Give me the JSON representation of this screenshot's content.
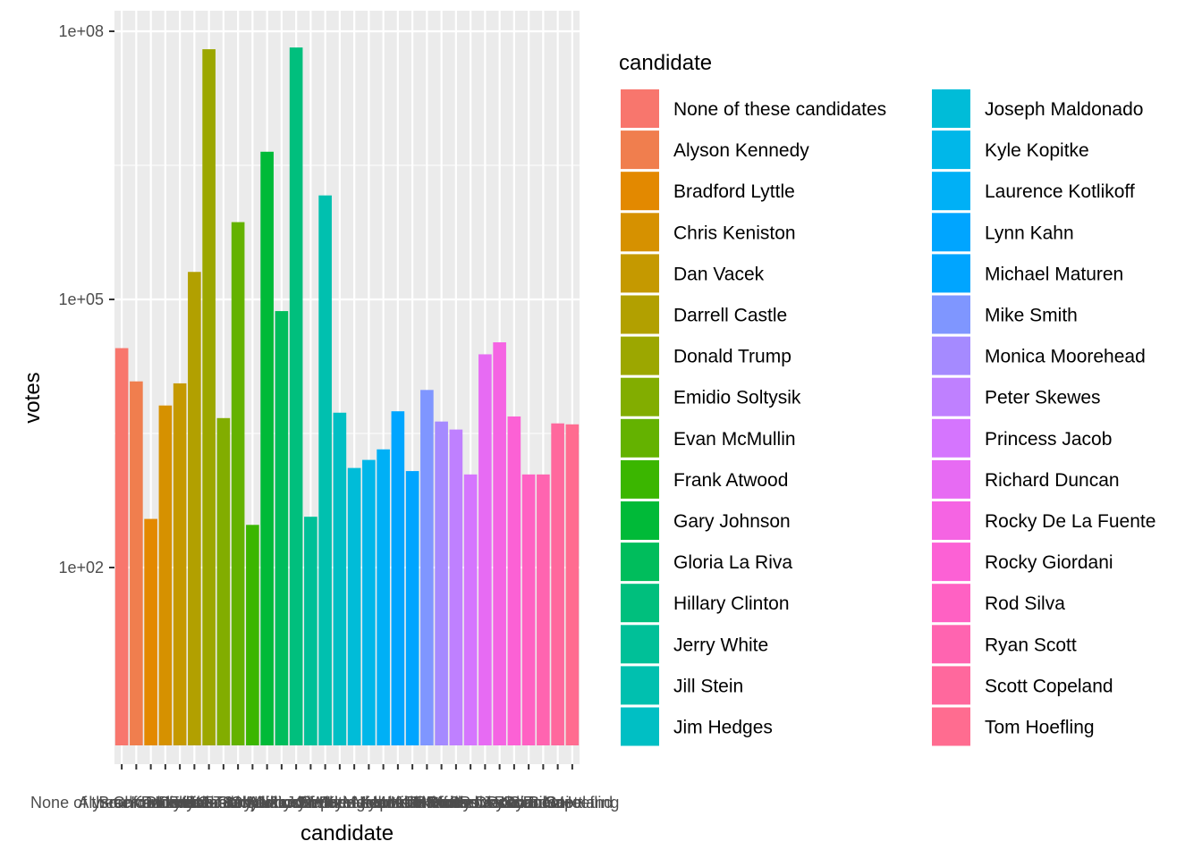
{
  "chart_data": {
    "type": "bar",
    "title": "",
    "xlabel": "candidate",
    "ylabel": "votes",
    "y_scale": "log10",
    "y_ticks": [
      100,
      100000,
      100000000
    ],
    "y_tick_labels": [
      "1e+02",
      "1e+05",
      "1e+08"
    ],
    "grid": true,
    "legend_title": "candidate",
    "legend_position": "right",
    "categories": [
      " None of these candidates",
      "Alyson Kennedy",
      "Bradford Lyttle",
      "Chris Keniston",
      "Dan Vacek",
      "Darrell Castle",
      "Donald Trump",
      "Emidio Soltysik",
      "Evan McMullin",
      "Frank Atwood",
      "Gary Johnson",
      "Gloria La Riva",
      "Hillary Clinton",
      "Jerry White",
      "Jill Stein",
      "Jim Hedges",
      "Joseph Maldonado",
      "Kyle Kopitke",
      "Laurence Kotlikoff",
      "Lynn Kahn",
      "Michael Maturen",
      "Mike Smith",
      "Monica Moorehead",
      "Peter Skewes",
      "Princess Jacob",
      "Richard Duncan",
      "Rocky De La Fuente",
      "Rocky Giordani",
      "Rod Silva",
      "Ryan Scott",
      "Scott Copeland",
      "Tom Hoefling"
    ],
    "values": [
      28500,
      12100,
      350,
      6500,
      11500,
      203000,
      62980000,
      4700,
      732000,
      300,
      4490000,
      74000,
      65850000,
      370,
      1457000,
      5400,
      1300,
      1600,
      2100,
      5600,
      1200,
      9700,
      4300,
      3500,
      1100,
      24300,
      33100,
      4900,
      1100,
      1100,
      4100,
      4000
    ],
    "colors": [
      "#F8766D",
      "#F07E4E",
      "#E38900",
      "#D69100",
      "#C59900",
      "#B2A000",
      "#9CA700",
      "#82AD00",
      "#64B200",
      "#3BB600",
      "#00BA38",
      "#00BD5C",
      "#00BF7D",
      "#00C098",
      "#00C0AF",
      "#00BFC4",
      "#00BCD8",
      "#00B7E9",
      "#00B0F6",
      "#00A5FF",
      "#00A5FF",
      "#7F96FF",
      "#A58AFF",
      "#BF80FF",
      "#D575FE",
      "#E76BF3",
      "#F564E3",
      "#FC61D5",
      "#FF61C3",
      "#FF64B0",
      "#FF689D",
      "#FF6C90"
    ]
  }
}
